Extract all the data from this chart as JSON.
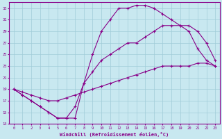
{
  "xlabel": "Windchill (Refroidissement éolien,°C)",
  "bg_color": "#c8e8f0",
  "line_color": "#880088",
  "grid_color": "#a0ccd8",
  "xlim": [
    -0.5,
    23.5
  ],
  "ylim": [
    13,
    34
  ],
  "xticks": [
    0,
    1,
    2,
    3,
    4,
    5,
    6,
    7,
    8,
    9,
    10,
    11,
    12,
    13,
    14,
    15,
    16,
    17,
    18,
    19,
    20,
    21,
    22,
    23
  ],
  "yticks": [
    13,
    15,
    17,
    19,
    21,
    23,
    25,
    27,
    29,
    31,
    33
  ],
  "line1_x": [
    0,
    1,
    2,
    3,
    4,
    5,
    6,
    7,
    8,
    9,
    10,
    11,
    12,
    13,
    14,
    15,
    16,
    17,
    18,
    19,
    20,
    21,
    22,
    23
  ],
  "line1_y": [
    19,
    18,
    17,
    16,
    15,
    14,
    14,
    16,
    20,
    25,
    29,
    31,
    33,
    33,
    33.5,
    33.5,
    33,
    32,
    31,
    30,
    29,
    26,
    24,
    23
  ],
  "line2_x": [
    0,
    1,
    2,
    3,
    4,
    5,
    6,
    7,
    8,
    9,
    10,
    11,
    12,
    13,
    14,
    15,
    16,
    17,
    18,
    19,
    20,
    21,
    22,
    23
  ],
  "line2_y": [
    19,
    18.5,
    18,
    17.5,
    17,
    17,
    17.5,
    18,
    18.5,
    19,
    19.5,
    20,
    20.5,
    21,
    21.5,
    22,
    22.5,
    23,
    23,
    23,
    23,
    23.5,
    23.5,
    23
  ],
  "line3_x": [
    0,
    1,
    2,
    3,
    4,
    5,
    6,
    7,
    8,
    9,
    10,
    11,
    12,
    13,
    14,
    15,
    16,
    17,
    18,
    19,
    20,
    21,
    22,
    23
  ],
  "line3_y": [
    19,
    18,
    17,
    16,
    15,
    14,
    14,
    14,
    20,
    22,
    24,
    25,
    26,
    27,
    27,
    28,
    29,
    30,
    30,
    30,
    30,
    29,
    27,
    24
  ]
}
